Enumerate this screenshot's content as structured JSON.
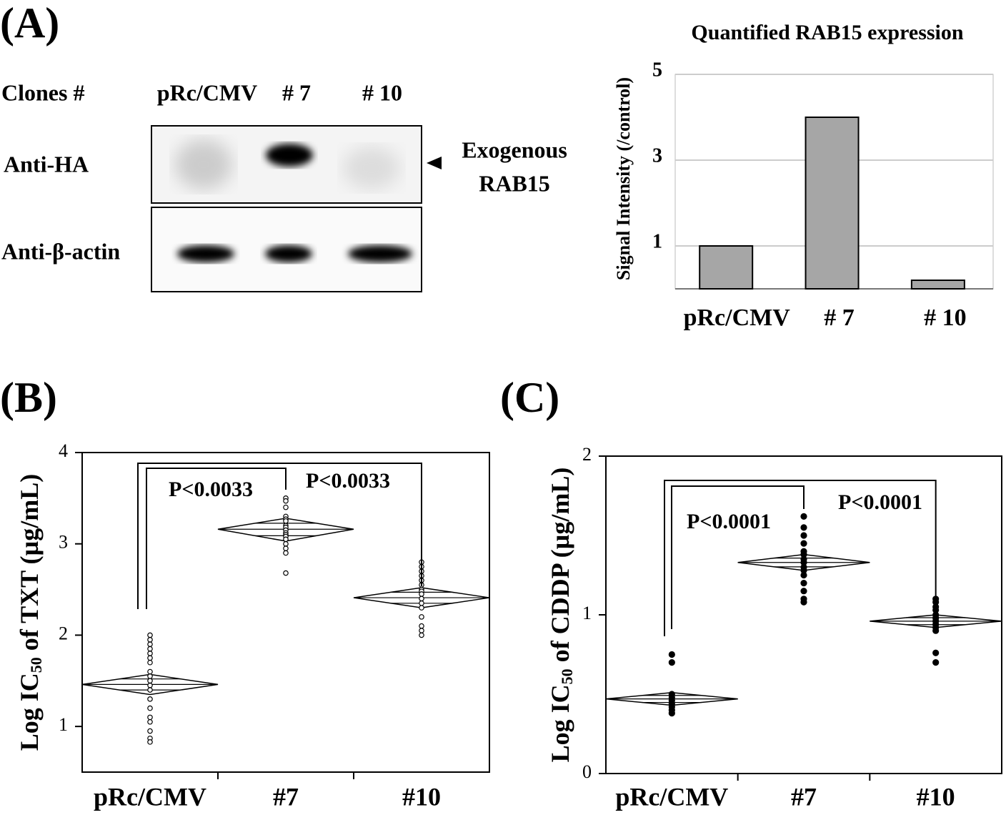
{
  "panel_labels": [
    "(A)",
    "(B)",
    "(C)"
  ],
  "blot": {
    "header": "Clones #",
    "lanes": [
      "pRc/CMV",
      "# 7",
      "# 10"
    ],
    "rows": [
      "Anti-HA",
      "Anti-β-actin"
    ],
    "arrow_label": [
      "Exogenous",
      "RAB15"
    ]
  },
  "chart_data": [
    {
      "type": "bar",
      "title": "Quantified RAB15 expression",
      "ylabel": "Signal Intensity (/control)",
      "categories": [
        "pRc/CMV",
        "# 7",
        "# 10"
      ],
      "values": [
        1,
        4.0,
        0.2
      ],
      "color": "#a6a6a6",
      "ylim": [
        0,
        5
      ],
      "yticks": [
        1,
        3,
        5
      ],
      "grid": true
    },
    {
      "type": "diamond",
      "ylabel": {
        "prefix": "Log IC",
        "subscript": "50",
        "suffix": " of TXT (µg/mL)"
      },
      "categories": [
        "pRc/CMV",
        "#7",
        "#10"
      ],
      "marker": "open",
      "points": [
        [
          2.0,
          1.95,
          1.9,
          1.85,
          1.8,
          1.75,
          1.7,
          1.6,
          1.55,
          1.5,
          1.45,
          1.4,
          1.3,
          1.2,
          1.1,
          1.05,
          0.95,
          0.87,
          0.83
        ],
        [
          3.5,
          3.47,
          3.4,
          3.3,
          3.27,
          3.25,
          3.2,
          3.18,
          3.15,
          3.12,
          3.1,
          3.08,
          3.05,
          3.0,
          2.95,
          2.9,
          2.68
        ],
        [
          2.8,
          2.75,
          2.7,
          2.65,
          2.6,
          2.55,
          2.5,
          2.48,
          2.45,
          2.4,
          2.35,
          2.3,
          2.2,
          2.1,
          2.05,
          2.0
        ]
      ],
      "means": [
        1.46,
        3.16,
        2.41
      ],
      "ci_low": [
        1.35,
        3.03,
        2.3
      ],
      "ci_high": [
        1.57,
        3.28,
        2.52
      ],
      "ylim": [
        0.5,
        4
      ],
      "yticks": [
        1,
        2,
        3,
        4
      ],
      "annotations": [
        "P<0.0033",
        "P<0.0033"
      ]
    },
    {
      "type": "diamond",
      "ylabel": {
        "prefix": "Log IC",
        "subscript": "50",
        "suffix": " of CDDP (µg/mL)"
      },
      "categories": [
        "pRc/CMV",
        "#7",
        "#10"
      ],
      "marker": "filled",
      "points": [
        [
          0.75,
          0.7,
          0.5,
          0.48,
          0.46,
          0.44,
          0.42,
          0.4,
          0.38
        ],
        [
          1.62,
          1.55,
          1.5,
          1.45,
          1.4,
          1.38,
          1.35,
          1.33,
          1.3,
          1.28,
          1.25,
          1.2,
          1.15,
          1.1,
          1.08
        ],
        [
          1.1,
          1.08,
          1.05,
          1.03,
          1.0,
          0.98,
          0.96,
          0.94,
          0.92,
          0.9,
          0.76,
          0.7
        ]
      ],
      "means": [
        0.47,
        1.33,
        0.96
      ],
      "ci_low": [
        0.43,
        1.28,
        0.92
      ],
      "ci_high": [
        0.51,
        1.38,
        1.0
      ],
      "ylim": [
        0,
        2
      ],
      "yticks": [
        0,
        1,
        2
      ],
      "annotations": [
        "P<0.0001",
        "P<0.0001"
      ]
    }
  ]
}
